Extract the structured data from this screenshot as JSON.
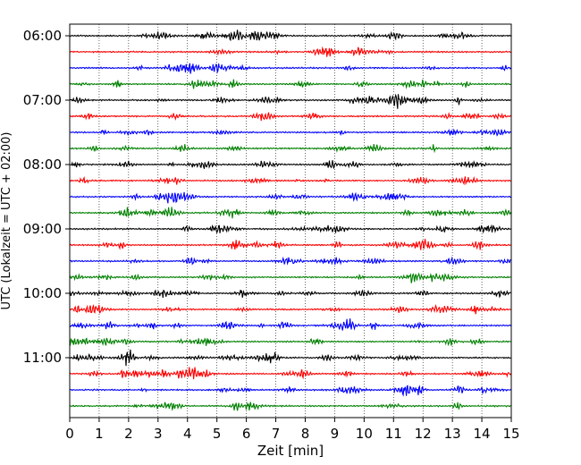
{
  "chart_data": {
    "type": "line",
    "subtype": "helicorder",
    "xlabel": "Zeit  [min]",
    "ylabel": "UTC (Lokalzeit = UTC + 02:00)",
    "xlim": [
      0,
      15
    ],
    "x_ticks": [
      0,
      1,
      2,
      3,
      4,
      5,
      6,
      7,
      8,
      9,
      10,
      11,
      12,
      13,
      14,
      15
    ],
    "y_tick_labels": [
      "06:00",
      "07:00",
      "08:00",
      "09:00",
      "10:00",
      "11:00"
    ],
    "trace_interval_min": 15,
    "start_time": "06:00",
    "trace_count": 24,
    "trace_colors": [
      "#000000",
      "#ff0000",
      "#0000ff",
      "#008000"
    ],
    "grid": "vertical dotted lines at each minute"
  }
}
